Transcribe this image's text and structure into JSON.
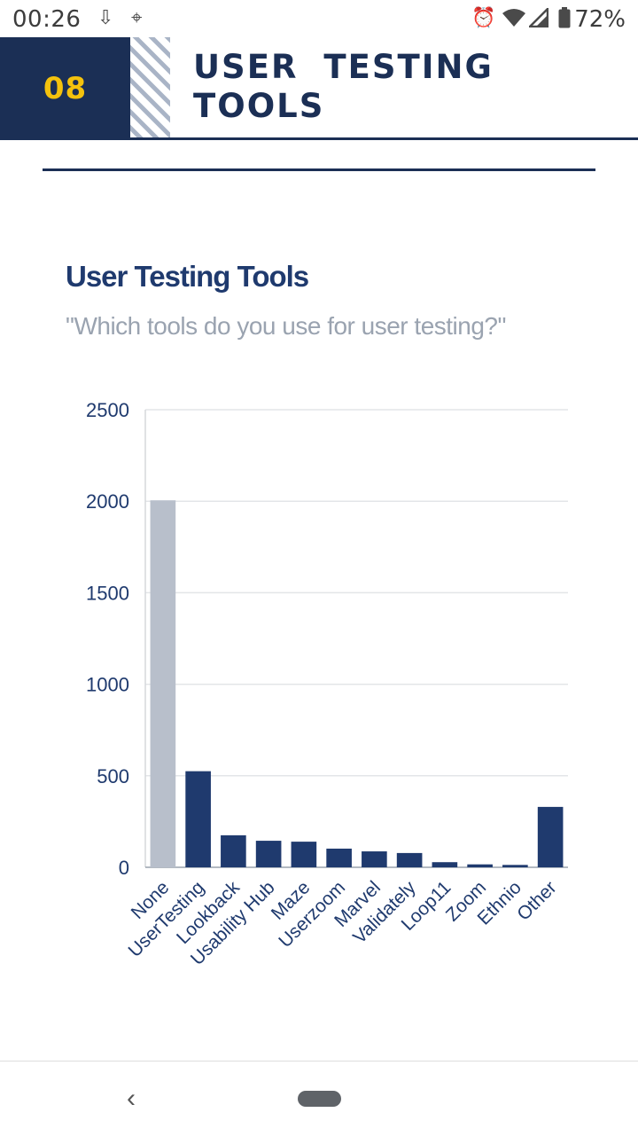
{
  "status_bar": {
    "time": "00:26",
    "battery": "72%",
    "icons": [
      "download-icon",
      "map-icon",
      "alarm-icon",
      "wifi-icon",
      "signal-icon",
      "battery-icon"
    ]
  },
  "header": {
    "section_number": "08",
    "title_line1": "USER TESTING",
    "title_line2": "TOOLS",
    "colors": {
      "navy": "#1b2f55",
      "yellow": "#f4c20d",
      "stripe": "#a9b4c6"
    }
  },
  "chart_data": {
    "type": "bar",
    "title": "User Testing Tools",
    "subtitle": "\"Which tools do you use for user testing?\"",
    "xlabel": "",
    "ylabel": "",
    "ylim": [
      0,
      2500
    ],
    "yticks": [
      0,
      500,
      1000,
      1500,
      2000,
      2500
    ],
    "categories": [
      "None",
      "UserTesting",
      "Lookback",
      "Usability Hub",
      "Maze",
      "Userzoom",
      "Marvel",
      "Validately",
      "Loop11",
      "Zoom",
      "Ethnio",
      "Other"
    ],
    "values": [
      2005,
      525,
      175,
      145,
      140,
      102,
      87,
      78,
      28,
      16,
      13,
      330
    ],
    "bar_colors": [
      "#b8bfcb",
      "#1f3a6e",
      "#1f3a6e",
      "#1f3a6e",
      "#1f3a6e",
      "#1f3a6e",
      "#1f3a6e",
      "#1f3a6e",
      "#1f3a6e",
      "#1f3a6e",
      "#1f3a6e",
      "#1f3a6e"
    ],
    "grid": true,
    "legend": "none"
  },
  "nav_bar": {
    "icons": [
      "back-icon",
      "home-pill-icon"
    ]
  }
}
